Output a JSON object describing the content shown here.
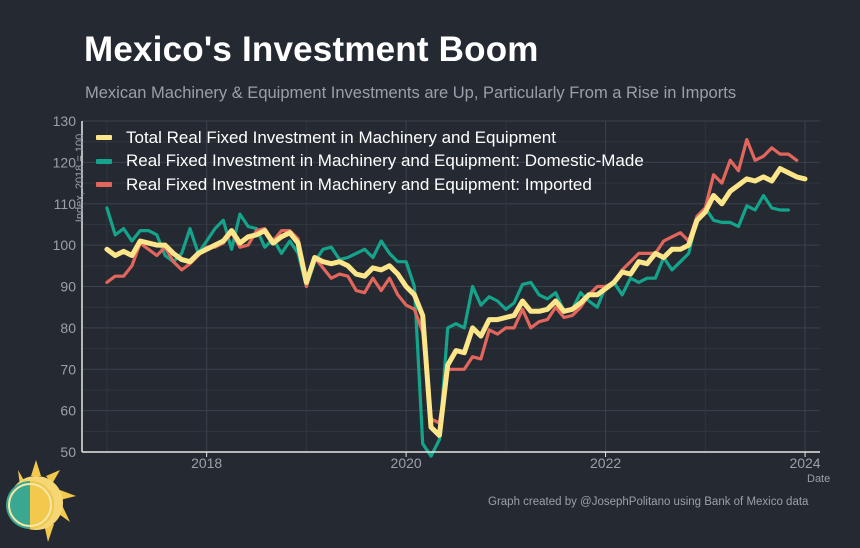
{
  "title": "Mexico's Investment Boom",
  "subtitle": "Mexican Machinery & Equipment Investments are Up, Particularly From a Rise in Imports",
  "credit": "Graph created by @JosephPolitano using Bank of Mexico data",
  "chart_data": {
    "type": "line",
    "title": "Mexico's Investment Boom",
    "subtitle": "Mexican Machinery & Equipment Investments are Up, Particularly From a Rise in Imports",
    "xlabel": "Date",
    "ylabel": "Index, 2018 = 100",
    "xlim": [
      2016.75,
      2024.15
    ],
    "ylim": [
      50,
      130
    ],
    "x_ticks": [
      2018,
      2020,
      2022,
      2024
    ],
    "x_tick_labels": [
      "2018",
      "2020",
      "2022",
      "2024"
    ],
    "y_ticks": [
      50,
      60,
      70,
      80,
      90,
      100,
      110,
      120,
      130
    ],
    "y_tick_labels": [
      "50",
      "60",
      "70",
      "80",
      "90",
      "100",
      "110",
      "120",
      "130"
    ],
    "grid": true,
    "legend_position": "top-left",
    "x_start": 2017.0,
    "x_step": 0.08333,
    "series": [
      {
        "name": "Total Real Fixed Investment in Machinery and Equipment",
        "color": "#fde68a",
        "values": [
          99,
          97.5,
          98.5,
          97.5,
          101,
          100.5,
          100,
          100,
          98,
          96.5,
          96,
          98,
          99,
          100,
          101,
          103.5,
          100.5,
          102,
          102.5,
          103.5,
          100.5,
          102,
          103,
          100.5,
          91,
          97,
          96,
          95.5,
          96,
          95,
          93,
          92.5,
          94.5,
          94,
          95,
          93,
          90,
          88,
          83,
          56,
          54,
          71,
          74.5,
          74,
          80,
          78,
          82,
          82,
          82.5,
          83,
          86.5,
          84,
          84,
          84.5,
          86.5,
          84,
          84.5,
          86,
          88,
          88,
          89.5,
          91,
          93.5,
          93,
          96,
          95.5,
          98,
          97,
          99,
          99,
          100,
          106,
          108,
          112,
          110,
          113,
          114.5,
          116,
          115.5,
          116.5,
          115.5,
          118.5,
          117.5,
          116.5,
          116
        ]
      },
      {
        "name": "Real Fixed Investment in Machinery and Equipment: Domestic-Made",
        "color": "#14a38b",
        "values": [
          109,
          102.5,
          104,
          101,
          103.5,
          103.5,
          102.5,
          97.5,
          96,
          98,
          104,
          98,
          101,
          104,
          106,
          99,
          107.5,
          104.5,
          104,
          99.5,
          101.5,
          98,
          101,
          98,
          90,
          96,
          99,
          99.5,
          96.5,
          97,
          98,
          99,
          97,
          101,
          98,
          96,
          96,
          90,
          52,
          49,
          53,
          80,
          81,
          80,
          90,
          85.5,
          87.5,
          86.5,
          84.5,
          86,
          90.5,
          91,
          88,
          87,
          88.5,
          84,
          84.5,
          88.5,
          86.5,
          85,
          90,
          91,
          88,
          92,
          91,
          92,
          92,
          97,
          94,
          96,
          98,
          106.5,
          109,
          106,
          105.5,
          105.5,
          104.5,
          109.5,
          108.5,
          112,
          109,
          108.5,
          108.5
        ]
      },
      {
        "name": "Real Fixed Investment in Machinery and Equipment: Imported",
        "color": "#e2665c",
        "values": [
          91,
          92.5,
          92.5,
          95,
          100.5,
          99,
          97.5,
          99.5,
          96,
          94,
          95.5,
          97.5,
          99.5,
          99.5,
          100.5,
          103,
          99.5,
          100,
          103.5,
          104,
          101,
          103.5,
          103.5,
          101.5,
          90,
          97,
          94.5,
          92,
          93,
          92.5,
          89,
          88.5,
          92,
          89,
          92,
          88,
          85.5,
          84.5,
          79,
          58,
          57,
          70,
          70,
          70,
          73,
          72.5,
          79.5,
          78.5,
          80,
          80,
          84.5,
          80,
          81.5,
          82,
          85,
          82.5,
          83,
          85,
          88,
          90,
          90,
          91,
          94,
          96,
          98,
          98,
          98,
          101,
          102,
          103,
          101,
          107,
          109,
          117,
          115,
          120.5,
          118,
          125.5,
          120.5,
          121.5,
          123.5,
          122,
          122,
          120.5
        ]
      }
    ]
  }
}
